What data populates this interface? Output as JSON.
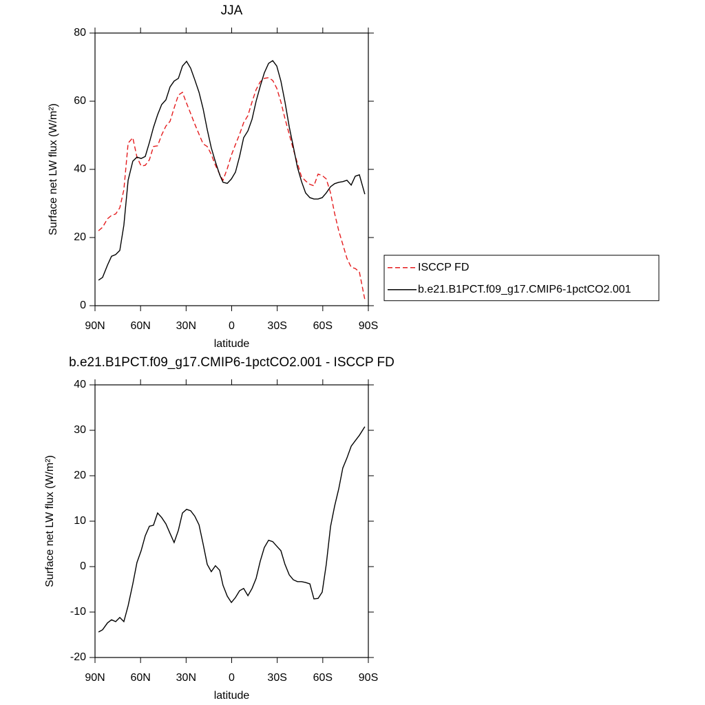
{
  "chart_data": [
    {
      "type": "line",
      "title": "JJA",
      "xlabel": "latitude",
      "ylabel": "Surface net LW flux (W/m²)",
      "xlim": [
        90,
        -90
      ],
      "xticks": [
        {
          "value": 90,
          "label": "90N"
        },
        {
          "value": 60,
          "label": "60N"
        },
        {
          "value": 30,
          "label": "30N"
        },
        0,
        {
          "value": -30,
          "label": "30S"
        },
        {
          "value": -60,
          "label": "60S"
        },
        {
          "value": -90,
          "label": "90S"
        }
      ],
      "ylim": [
        0,
        80
      ],
      "yticks": [
        0,
        20,
        40,
        60,
        80
      ],
      "legend": "right",
      "x": [
        87.7,
        85.0,
        81.8,
        79.1,
        76.4,
        73.7,
        71.0,
        68.2,
        65.1,
        62.4,
        59.6,
        56.9,
        54.2,
        51.5,
        48.8,
        46.1,
        43.3,
        40.6,
        37.9,
        35.1,
        32.4,
        29.7,
        27.0,
        24.3,
        21.5,
        18.8,
        16.1,
        13.4,
        10.7,
        7.9,
        5.7,
        2.9,
        0.2,
        -2.5,
        -5.2,
        -7.9,
        -10.7,
        -13.4,
        -16.1,
        -18.8,
        -21.5,
        -24.3,
        -27.0,
        -29.7,
        -32.4,
        -35.1,
        -37.9,
        -40.6,
        -43.3,
        -46.0,
        -48.7,
        -51.5,
        -54.2,
        -56.9,
        -59.6,
        -62.3,
        -65.1,
        -67.8,
        -70.5,
        -73.2,
        -75.9,
        -78.7,
        -81.4,
        -84.1,
        -87.7
      ],
      "series": [
        {
          "name": "ISCCP FD",
          "color": "#e41a1c",
          "dash": "dashed",
          "values": [
            22,
            23,
            25.5,
            26.5,
            26.9,
            28.7,
            34,
            47.7,
            49.3,
            43.6,
            41,
            41.2,
            42.8,
            46.7,
            46.9,
            50.1,
            52.7,
            54.1,
            58,
            61.8,
            62.6,
            59.4,
            56.4,
            53.3,
            50.3,
            47.5,
            46.7,
            44.4,
            41.2,
            38.6,
            36.8,
            40.2,
            44.2,
            47.3,
            50.3,
            53.7,
            55.8,
            59.8,
            63.4,
            65.7,
            66.7,
            66.9,
            66.1,
            63.8,
            59.8,
            54.9,
            50.3,
            45.9,
            41.8,
            37.8,
            36.6,
            35.6,
            35.2,
            38.6,
            38.2,
            37.2,
            33.1,
            27.1,
            22,
            18,
            13.9,
            11.3,
            10.9,
            9.9,
            1.8
          ]
        },
        {
          "name": "b.e21.B1PCT.f09_g17.CMIP6-1pctCO2.001",
          "color": "#000000",
          "dash": "solid",
          "values": [
            7.5,
            8.3,
            11.9,
            14.5,
            15,
            16.2,
            23.6,
            36.8,
            42.4,
            43.6,
            43.2,
            43.8,
            47.9,
            52.3,
            56,
            59,
            60.4,
            64.2,
            65.9,
            66.7,
            70.3,
            71.7,
            69.7,
            66.3,
            62.6,
            57.8,
            51.7,
            46.3,
            42.2,
            38.4,
            36.2,
            35.9,
            37.2,
            39.2,
            43.8,
            49.3,
            51.3,
            54.7,
            60,
            64.4,
            68.3,
            71.1,
            71.9,
            70.3,
            65.9,
            59.8,
            52.5,
            46.7,
            40.6,
            36.4,
            33.1,
            31.7,
            31.3,
            31.3,
            31.7,
            33.1,
            34.9,
            35.8,
            36.2,
            36.4,
            36.8,
            35.4,
            38,
            38.4,
            32.7
          ]
        }
      ]
    },
    {
      "type": "line",
      "title": "b.e21.B1PCT.f09_g17.CMIP6-1pctCO2.001 - ISCCP FD",
      "xlabel": "latitude",
      "ylabel": "Surface net LW flux (W/m²)",
      "xlim": [
        90,
        -90
      ],
      "xticks": [
        {
          "value": 90,
          "label": "90N"
        },
        {
          "value": 60,
          "label": "60N"
        },
        {
          "value": 30,
          "label": "30N"
        },
        0,
        {
          "value": -30,
          "label": "30S"
        },
        {
          "value": -60,
          "label": "60S"
        },
        {
          "value": -90,
          "label": "90S"
        }
      ],
      "ylim": [
        -20,
        40
      ],
      "yticks": [
        -20,
        -10,
        0,
        10,
        20,
        30,
        40
      ],
      "x": [
        87.7,
        85.0,
        81.8,
        79.1,
        76.4,
        73.7,
        71.0,
        68.2,
        65.1,
        62.4,
        59.6,
        56.9,
        54.2,
        51.5,
        48.8,
        46.1,
        43.3,
        40.6,
        37.9,
        35.1,
        32.4,
        29.7,
        27.0,
        24.3,
        21.5,
        18.8,
        16.1,
        13.4,
        10.7,
        7.9,
        5.7,
        2.9,
        0.2,
        -2.5,
        -5.2,
        -7.9,
        -10.7,
        -13.4,
        -16.1,
        -18.8,
        -21.5,
        -24.3,
        -27.0,
        -29.7,
        -32.4,
        -35.1,
        -37.9,
        -40.6,
        -43.3,
        -46.0,
        -48.7,
        -51.5,
        -54.2,
        -56.9,
        -59.6,
        -62.3,
        -65.1,
        -67.8,
        -70.5,
        -73.2,
        -75.9,
        -78.7,
        -81.4,
        -84.1,
        -87.7
      ],
      "series": [
        {
          "color": "#000000",
          "dash": "solid",
          "values": [
            -14.4,
            -13.9,
            -12.4,
            -11.7,
            -12.1,
            -11.2,
            -12.1,
            -8.6,
            -3.8,
            0.9,
            3.5,
            6.8,
            8.9,
            9.1,
            11.8,
            10.8,
            9.4,
            7.3,
            5.3,
            8.0,
            11.8,
            12.6,
            12.3,
            11.1,
            9.2,
            5.0,
            0.5,
            -1.1,
            0.2,
            -0.8,
            -4.1,
            -6.5,
            -7.9,
            -6.8,
            -5.3,
            -4.8,
            -6.4,
            -4.8,
            -2.6,
            1.2,
            4.2,
            5.8,
            5.5,
            4.5,
            3.5,
            0.5,
            -1.8,
            -2.9,
            -3.3,
            -3.3,
            -3.5,
            -3.8,
            -7.1,
            -7.0,
            -5.6,
            0.5,
            8.8,
            13.3,
            17.1,
            21.7,
            23.9,
            26.5,
            27.7,
            28.9,
            30.8
          ]
        }
      ]
    }
  ]
}
